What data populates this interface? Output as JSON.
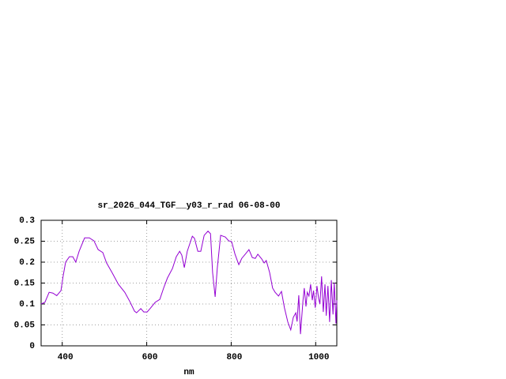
{
  "chart_data": {
    "type": "line",
    "title": "sr_2026_044_TGF__y03_r_rad 06-08-00",
    "x_label": "nm",
    "x": [
      350,
      359,
      369,
      378,
      387,
      397,
      402,
      408,
      417,
      425,
      432,
      440,
      453,
      464,
      475,
      485,
      496,
      505,
      518,
      533,
      548,
      560,
      571,
      576,
      586,
      593,
      601,
      608,
      620,
      631,
      640,
      649,
      661,
      670,
      678,
      683,
      689,
      696,
      708,
      713,
      721,
      728,
      736,
      745,
      751,
      756,
      762,
      767,
      775,
      786,
      794,
      801,
      809,
      818,
      825,
      835,
      842,
      850,
      857,
      863,
      872,
      878,
      883,
      891,
      898,
      904,
      912,
      919,
      926,
      934,
      941,
      947,
      953,
      956,
      960,
      964,
      970,
      973,
      977,
      980,
      984,
      988,
      992,
      995,
      999,
      1003,
      1007,
      1010,
      1014,
      1018,
      1022,
      1025,
      1029,
      1033,
      1037,
      1041,
      1044,
      1048,
      1050
    ],
    "series": [
      {
        "name": "sr_2026_044_TGF__y03_r_rad",
        "color": "#9400d3",
        "values": [
          0.1,
          0.104,
          0.128,
          0.126,
          0.12,
          0.132,
          0.166,
          0.2,
          0.213,
          0.213,
          0.2,
          0.226,
          0.258,
          0.258,
          0.251,
          0.23,
          0.223,
          0.198,
          0.175,
          0.147,
          0.128,
          0.106,
          0.083,
          0.079,
          0.089,
          0.081,
          0.081,
          0.089,
          0.104,
          0.111,
          0.138,
          0.162,
          0.185,
          0.213,
          0.226,
          0.217,
          0.187,
          0.226,
          0.262,
          0.257,
          0.226,
          0.226,
          0.264,
          0.274,
          0.268,
          0.175,
          0.117,
          0.185,
          0.264,
          0.26,
          0.251,
          0.249,
          0.219,
          0.194,
          0.209,
          0.221,
          0.23,
          0.211,
          0.209,
          0.219,
          0.208,
          0.198,
          0.204,
          0.175,
          0.138,
          0.128,
          0.119,
          0.13,
          0.091,
          0.057,
          0.038,
          0.068,
          0.079,
          0.058,
          0.121,
          0.028,
          0.109,
          0.138,
          0.094,
          0.128,
          0.119,
          0.147,
          0.109,
          0.132,
          0.091,
          0.143,
          0.113,
          0.1,
          0.166,
          0.081,
          0.147,
          0.072,
          0.143,
          0.057,
          0.157,
          0.075,
          0.151,
          0.053,
          0.109
        ]
      }
    ],
    "xlim": [
      350,
      1050
    ],
    "xticks": [
      400,
      600,
      800,
      1000
    ],
    "ylim": [
      0,
      0.3
    ],
    "yticks": [
      0,
      0.05,
      0.1,
      0.15,
      0.2,
      0.25,
      0.3
    ],
    "grid": true
  }
}
